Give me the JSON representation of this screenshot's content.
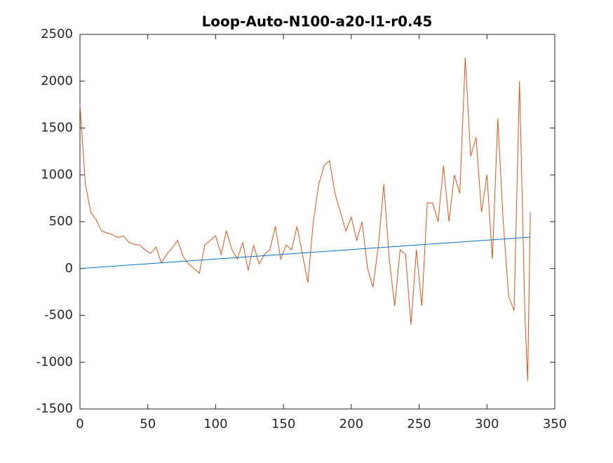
{
  "chart_data": {
    "type": "line",
    "title": "Loop-Auto-N100-a20-l1-r0.45",
    "series": [
      {
        "color": "#d95319",
        "x": [
          0,
          4,
          8,
          12,
          16,
          20,
          24,
          28,
          32,
          36,
          40,
          44,
          48,
          52,
          56,
          60,
          64,
          68,
          72,
          76,
          80,
          84,
          88,
          92,
          96,
          100,
          104,
          108,
          112,
          116,
          120,
          124,
          128,
          132,
          136,
          140,
          144,
          148,
          152,
          156,
          160,
          164,
          168,
          172,
          176,
          180,
          184,
          188,
          192,
          196,
          200,
          204,
          208,
          212,
          216,
          220,
          224,
          228,
          232,
          236,
          240,
          244,
          248,
          252,
          256,
          260,
          264,
          268,
          272,
          276,
          280,
          284,
          288,
          292,
          296,
          300,
          304,
          308,
          312,
          316,
          320,
          324,
          328,
          330,
          332
        ],
        "values": [
          1750,
          900,
          600,
          520,
          400,
          380,
          360,
          330,
          350,
          280,
          260,
          250,
          200,
          160,
          230,
          60,
          150,
          220,
          300,
          130,
          50,
          0,
          -50,
          250,
          300,
          350,
          150,
          400,
          200,
          100,
          280,
          -20,
          250,
          50,
          150,
          200,
          450,
          100,
          250,
          200,
          450,
          150,
          -150,
          500,
          900,
          1100,
          1150,
          800,
          600,
          400,
          550,
          300,
          500,
          0,
          -200,
          250,
          900,
          100,
          -400,
          200,
          150,
          -600,
          200,
          -400,
          700,
          700,
          500,
          1100,
          500,
          1000,
          800,
          2250,
          1200,
          1400,
          600,
          1000,
          100,
          1600,
          500,
          -300,
          -450,
          2000,
          -500,
          -1200,
          600
        ]
      },
      {
        "color": "#0072bd",
        "x": [
          0,
          332
        ],
        "values": [
          0,
          335
        ]
      }
    ],
    "xlim": [
      0,
      350
    ],
    "xticks": [
      0,
      50,
      100,
      150,
      200,
      250,
      300,
      350
    ],
    "ylim": [
      -1500,
      2500
    ],
    "yticks": [
      -1500,
      -1000,
      -500,
      0,
      500,
      1000,
      1500,
      2000,
      2500
    ]
  }
}
